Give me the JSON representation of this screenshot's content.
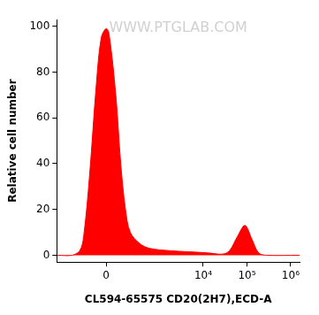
{
  "chart_data": {
    "type": "line",
    "x_label": "CL594-65575 CD20(2H7),ECD-A",
    "y_label": "Relative cell number",
    "annotations": [
      "WWW.PTGLAB.COM"
    ],
    "x": [
      -770,
      -348,
      -225,
      -178,
      -118,
      -64,
      -31,
      0,
      18,
      64,
      102,
      145,
      198,
      348,
      593,
      1670,
      4640,
      12900,
      27900,
      40000,
      60000,
      90000,
      130000,
      186000,
      280000,
      1600000
    ],
    "values": [
      0,
      0,
      2,
      8,
      35,
      75,
      95,
      99,
      97,
      70,
      40,
      20,
      10,
      5,
      3,
      2,
      1.5,
      1,
      0.5,
      2,
      8,
      13,
      7,
      1,
      0,
      0
    ],
    "color": "#ff0000",
    "log": "x",
    "xlim": [
      -800,
      1600000
    ],
    "xticks": [
      0,
      {
        "value": 10000,
        "label": "10⁴"
      },
      {
        "value": 100000,
        "label": "10⁵"
      },
      {
        "value": 1000000,
        "label": "10⁶"
      }
    ],
    "ylim": [
      -3,
      103
    ],
    "yticks": [
      0,
      20,
      40,
      60,
      80,
      100
    ],
    "grid": false
  }
}
